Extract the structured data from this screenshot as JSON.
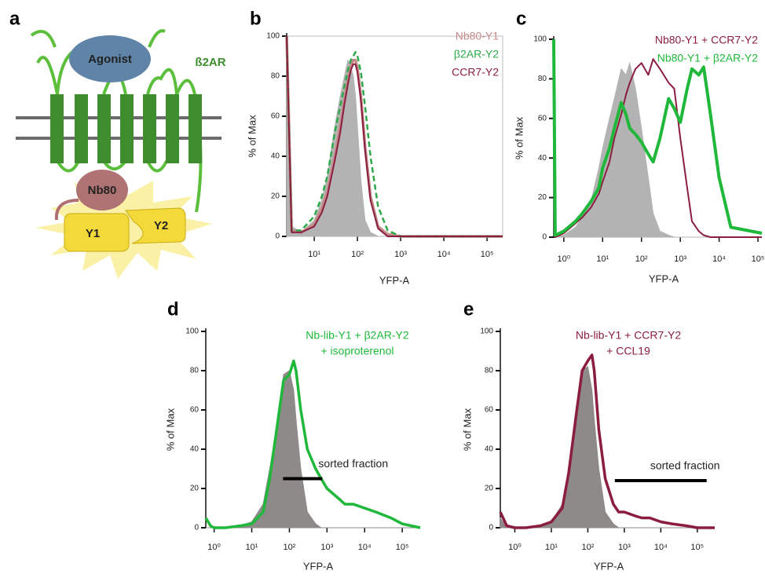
{
  "diagram": {
    "panel": "a",
    "labels": {
      "agonist": "Agonist",
      "receptor": "ß2AR",
      "nanobody": "Nb80",
      "y1": "Y1",
      "y2": "Y2"
    }
  },
  "chart_data": [
    {
      "type": "line",
      "panel": "b",
      "xlabel": "YFP-A",
      "ylabel": "% of Max",
      "log_x": true,
      "frame": true,
      "xlim": [
        2.3,
        230000
      ],
      "ylim": [
        0,
        100
      ],
      "xticks": [
        {
          "value": 10,
          "label": "10¹"
        },
        {
          "value": 100,
          "label": "10²"
        },
        {
          "value": 1000,
          "label": "10³"
        },
        {
          "value": 10000,
          "label": "10⁴"
        },
        {
          "value": 100000,
          "label": "10⁵"
        }
      ],
      "yticks": [
        0,
        20,
        40,
        60,
        80,
        100
      ],
      "x": [
        2.3,
        3,
        5,
        10,
        15,
        20,
        30,
        40,
        50,
        60,
        70,
        80,
        90,
        100,
        120,
        150,
        200,
        300,
        500,
        1000,
        230000
      ],
      "series": [
        {
          "color": "#b3b3b3",
          "fill": true,
          "line_width": 1,
          "values": [
            95,
            5,
            2,
            8,
            18,
            30,
            55,
            70,
            80,
            88,
            85,
            80,
            70,
            55,
            28,
            8,
            2,
            0,
            0,
            0,
            0
          ]
        },
        {
          "name": "Nb80-Y1",
          "color": "#c48a8a",
          "line_width": 3.5,
          "values": [
            100,
            3,
            2,
            6,
            14,
            22,
            40,
            55,
            68,
            78,
            85,
            88,
            88,
            84,
            70,
            45,
            20,
            5,
            1,
            0,
            0
          ]
        },
        {
          "name": "β2AR-Y2",
          "color": "#2ea84a",
          "dash": true,
          "line_width": 2.5,
          "values": [
            100,
            3,
            3,
            10,
            20,
            30,
            52,
            65,
            75,
            83,
            88,
            90,
            92,
            90,
            82,
            65,
            40,
            15,
            3,
            0,
            0
          ]
        },
        {
          "name": "CCR7-Y2",
          "color": "#8b1e3f",
          "line_width": 2,
          "values": [
            100,
            2,
            2,
            5,
            12,
            20,
            38,
            52,
            66,
            76,
            83,
            86,
            86,
            82,
            68,
            43,
            18,
            4,
            0,
            0,
            0
          ]
        }
      ]
    },
    {
      "type": "line",
      "panel": "c",
      "xlabel": "YFP-A",
      "ylabel": "% of Max",
      "log_x": true,
      "frame": false,
      "xlim": [
        0.55,
        126000
      ],
      "ylim": [
        0,
        100
      ],
      "xticks": [
        {
          "value": 1,
          "label": "10⁰"
        },
        {
          "value": 10,
          "label": "10¹"
        },
        {
          "value": 100,
          "label": "10²"
        },
        {
          "value": 1000,
          "label": "10³"
        },
        {
          "value": 10000,
          "label": "10⁴"
        },
        {
          "value": 100000,
          "label": "10⁵"
        }
      ],
      "yticks": [
        0,
        20,
        40,
        60,
        80,
        100
      ],
      "x": [
        0.55,
        0.6,
        1,
        2,
        3,
        5,
        8,
        10,
        15,
        20,
        30,
        40,
        50,
        70,
        100,
        150,
        200,
        300,
        500,
        700,
        1000,
        1500,
        2000,
        3000,
        4000,
        6000,
        10000,
        20000,
        126000
      ],
      "series": [
        {
          "color": "#b3b3b3",
          "fill": true,
          "line_width": 1,
          "values": [
            0,
            0,
            1,
            5,
            10,
            18,
            35,
            45,
            60,
            70,
            85,
            82,
            88,
            75,
            55,
            30,
            12,
            3,
            1,
            0,
            0,
            0,
            0,
            0,
            0,
            0,
            0,
            0,
            0
          ]
        },
        {
          "name": "Nb80-Y1 + CCR7-Y2",
          "color": "#8b1e3f",
          "line_width": 2,
          "values": [
            0,
            0,
            2,
            7,
            10,
            15,
            22,
            28,
            38,
            50,
            62,
            72,
            78,
            85,
            88,
            82,
            90,
            85,
            78,
            75,
            50,
            25,
            8,
            3,
            1,
            0,
            0,
            0,
            0
          ]
        },
        {
          "name": "Nb80-Y1 + β2AR-Y2",
          "color": "#1fb83a",
          "line_width": 4,
          "values": [
            100,
            1,
            3,
            8,
            12,
            18,
            25,
            35,
            45,
            55,
            68,
            62,
            55,
            52,
            48,
            42,
            38,
            50,
            70,
            65,
            58,
            75,
            85,
            82,
            86,
            62,
            30,
            5,
            2
          ]
        }
      ]
    },
    {
      "type": "line",
      "panel": "d",
      "xlabel": "YFP-A",
      "ylabel": "% of Max",
      "log_x": true,
      "frame": false,
      "xlim": [
        0.6,
        300000
      ],
      "ylim": [
        0,
        100
      ],
      "xticks": [
        {
          "value": 1,
          "label": "10⁰"
        },
        {
          "value": 10,
          "label": "10¹"
        },
        {
          "value": 100,
          "label": "10²"
        },
        {
          "value": 1000,
          "label": "10³"
        },
        {
          "value": 10000,
          "label": "10⁴"
        },
        {
          "value": 100000,
          "label": "10⁵"
        }
      ],
      "yticks": [
        0,
        20,
        40,
        60,
        80,
        100
      ],
      "x": [
        0.6,
        0.8,
        1,
        2,
        5,
        10,
        20,
        30,
        50,
        70,
        100,
        130,
        150,
        200,
        300,
        500,
        700,
        1000,
        2000,
        3000,
        5000,
        10000,
        20000,
        50000,
        100000,
        300000
      ],
      "series": [
        {
          "color": "#8f8a8a",
          "fill": true,
          "line_width": 1,
          "values": [
            0,
            0,
            0,
            0,
            1,
            3,
            12,
            30,
            55,
            78,
            80,
            70,
            55,
            30,
            8,
            2,
            0,
            0,
            0,
            0,
            0,
            0,
            0,
            0,
            0,
            0
          ]
        },
        {
          "name": "Nb-lib-Y1 + β2AR-Y2",
          "color": "#1fb83a",
          "line_width": 3.5,
          "values": [
            5,
            1,
            0,
            0,
            1,
            2,
            8,
            25,
            55,
            75,
            78,
            85,
            80,
            60,
            40,
            30,
            25,
            20,
            15,
            12,
            12,
            10,
            8,
            5,
            2,
            0
          ]
        }
      ],
      "annotations": [
        {
          "text": "+ isoproterenol"
        },
        {
          "text": "sorted fraction",
          "x": [
            68,
            750
          ],
          "y": 25
        }
      ]
    },
    {
      "type": "line",
      "panel": "e",
      "xlabel": "YFP-A",
      "ylabel": "% of Max",
      "log_x": true,
      "frame": false,
      "xlim": [
        0.4,
        300000
      ],
      "ylim": [
        0,
        100
      ],
      "xticks": [
        {
          "value": 1,
          "label": "10⁰"
        },
        {
          "value": 10,
          "label": "10¹"
        },
        {
          "value": 100,
          "label": "10²"
        },
        {
          "value": 1000,
          "label": "10³"
        },
        {
          "value": 10000,
          "label": "10⁴"
        },
        {
          "value": 100000,
          "label": "10⁵"
        }
      ],
      "yticks": [
        0,
        20,
        40,
        60,
        80,
        100
      ],
      "x": [
        0.4,
        0.6,
        1,
        2,
        5,
        10,
        20,
        30,
        50,
        70,
        100,
        130,
        150,
        200,
        300,
        500,
        700,
        1000,
        2000,
        3000,
        5000,
        10000,
        20000,
        50000,
        100000,
        300000
      ],
      "series": [
        {
          "color": "#8f8a8a",
          "fill": true,
          "line_width": 1,
          "values": [
            5,
            0,
            0,
            0,
            1,
            3,
            12,
            30,
            60,
            80,
            82,
            70,
            55,
            30,
            8,
            2,
            0,
            0,
            0,
            0,
            0,
            0,
            0,
            0,
            0,
            0
          ]
        },
        {
          "name": "Nb-lib-Y1 + CCR7-Y2",
          "color": "#8b1e3f",
          "line_width": 3.5,
          "values": [
            8,
            1,
            0,
            0,
            1,
            3,
            10,
            28,
            60,
            80,
            85,
            88,
            80,
            50,
            25,
            12,
            8,
            8,
            6,
            5,
            5,
            3,
            2,
            1,
            0,
            0
          ]
        }
      ],
      "annotations": [
        {
          "text": "+ CCL19"
        },
        {
          "text": "sorted fraction",
          "x": [
            550,
            180000
          ],
          "y": 24
        }
      ]
    }
  ]
}
